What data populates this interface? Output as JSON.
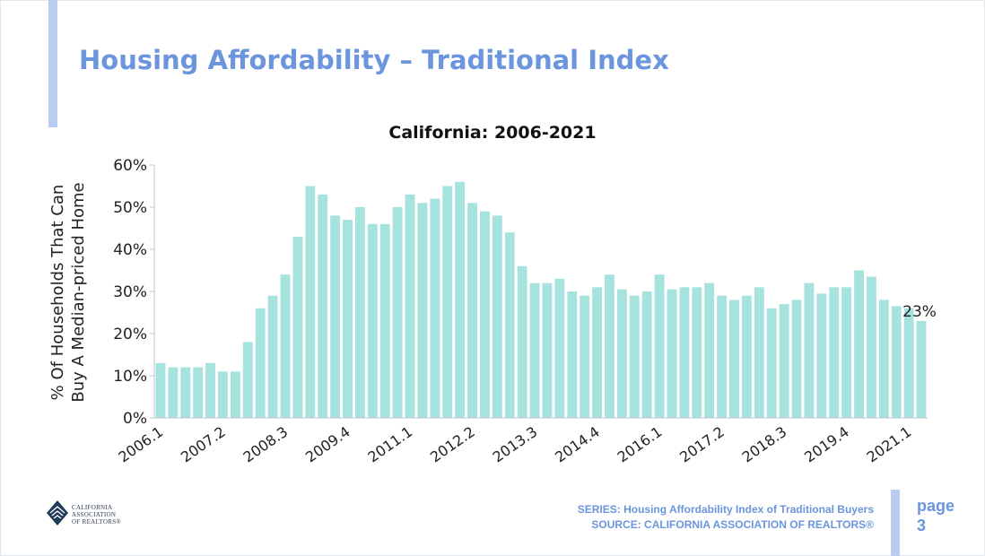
{
  "slide": {
    "title": "Housing Affordability – Traditional Index",
    "series_line": "SERIES: Housing Affordability Index of Traditional Buyers",
    "source_line": "SOURCE: CALIFORNIA ASSOCIATION OF REALTORS®",
    "page_word": "page",
    "page_number": "3",
    "logo": {
      "line1": "CALIFORNIA",
      "line2": "ASSOCIATION",
      "line3": "OF REALTORS®",
      "icon": "car-logo-icon"
    },
    "accent_color": "#6b95dc"
  },
  "chart_data": {
    "type": "bar",
    "title": "California: 2006-2021",
    "ylabel_line1": "% Of Households That Can",
    "ylabel_line2": "Buy A Median-priced Home",
    "ylim": [
      0,
      60
    ],
    "yticks": [
      "0%",
      "10%",
      "20%",
      "30%",
      "40%",
      "50%",
      "60%"
    ],
    "bar_color": "#a6e3de",
    "categories": [
      "2006.1",
      "2006.2",
      "2006.3",
      "2006.4",
      "2007.1",
      "2007.2",
      "2007.3",
      "2007.4",
      "2008.1",
      "2008.2",
      "2008.3",
      "2008.4",
      "2009.1",
      "2009.2",
      "2009.3",
      "2009.4",
      "2010.1",
      "2010.2",
      "2010.3",
      "2010.4",
      "2011.1",
      "2011.2",
      "2011.3",
      "2011.4",
      "2012.1",
      "2012.2",
      "2012.3",
      "2012.4",
      "2013.1",
      "2013.2",
      "2013.3",
      "2013.4",
      "2014.1",
      "2014.2",
      "2014.3",
      "2014.4",
      "2015.1",
      "2015.2",
      "2015.3",
      "2015.4",
      "2016.1",
      "2016.2",
      "2016.3",
      "2016.4",
      "2017.1",
      "2017.2",
      "2017.3",
      "2017.4",
      "2018.1",
      "2018.2",
      "2018.3",
      "2018.4",
      "2019.1",
      "2019.2",
      "2019.3",
      "2019.4",
      "2020.1",
      "2020.2",
      "2020.3",
      "2020.4",
      "2021.1",
      "2021.2"
    ],
    "values": [
      13,
      12,
      12,
      12,
      13,
      11,
      11,
      18,
      26,
      29,
      34,
      43,
      55,
      53,
      48,
      47,
      50,
      46,
      46,
      50,
      53,
      51,
      52,
      55,
      56,
      51,
      49,
      48,
      44,
      36,
      32,
      32,
      33,
      30,
      29,
      31,
      34,
      30.5,
      29,
      30,
      34,
      30.5,
      31,
      31,
      32,
      29,
      28,
      29,
      31,
      26,
      27,
      28,
      32,
      29.5,
      31,
      31,
      35,
      33.5,
      28,
      26.5,
      26,
      23
    ],
    "xtick_labels": [
      "2006.1",
      "2007.2",
      "2008.3",
      "2009.4",
      "2011.1",
      "2012.2",
      "2013.3",
      "2014.4",
      "2016.1",
      "2017.2",
      "2018.3",
      "2019.4",
      "2021.1"
    ],
    "annotation": "23%"
  }
}
